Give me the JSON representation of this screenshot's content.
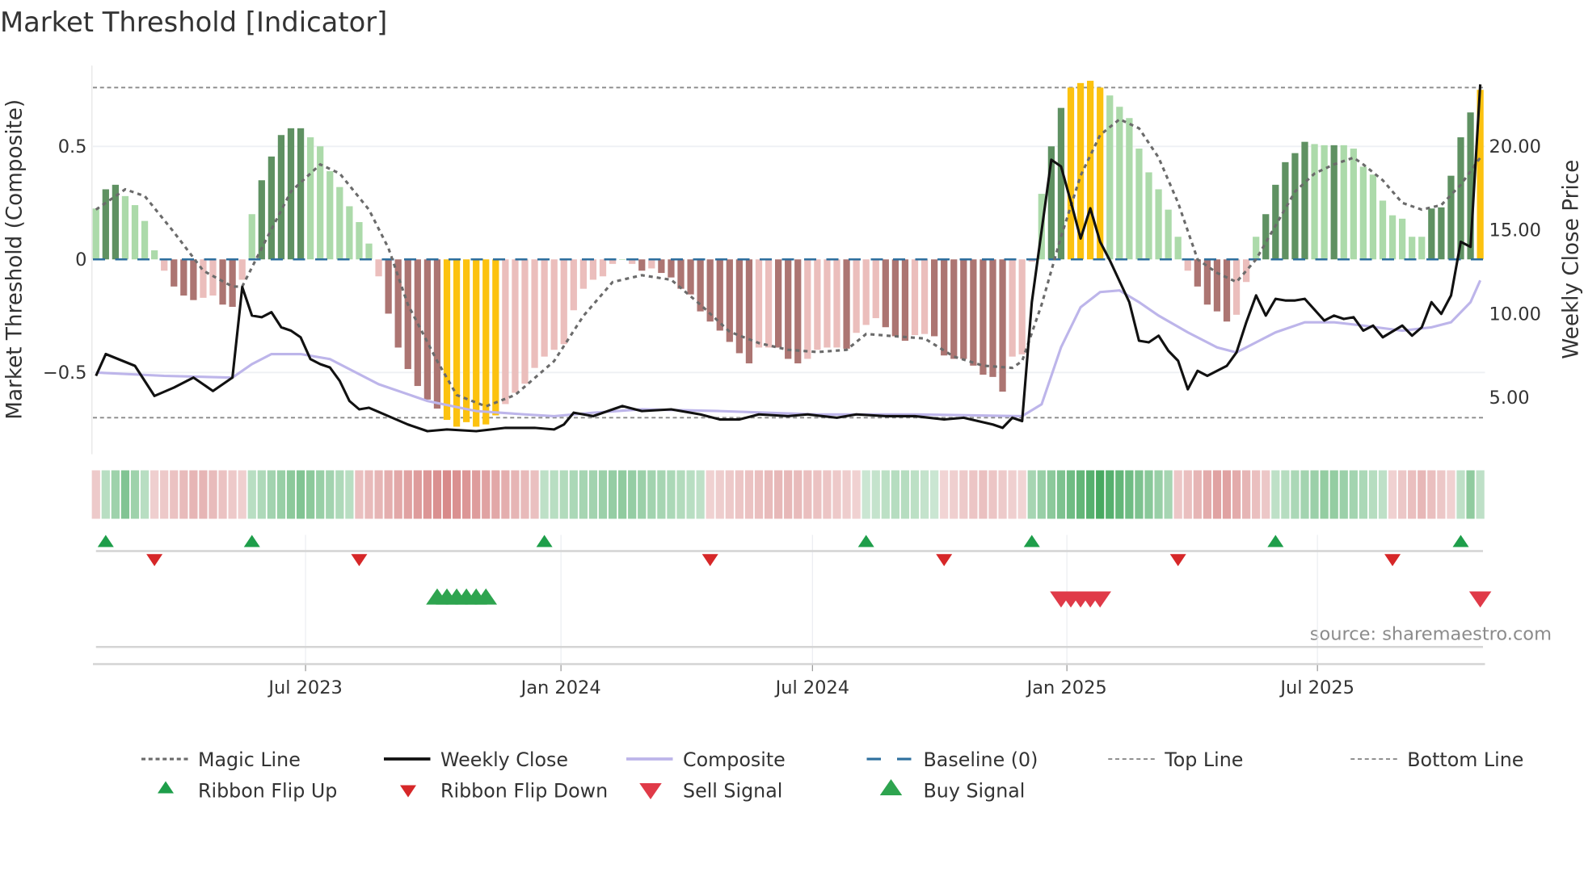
{
  "chart_data": {
    "type": "bar",
    "title": "Market Threshold [Indicator]",
    "ylabel_left": "Market Threshold (Composite)",
    "ylabel_right": "Weekly Close Price",
    "source": "source: sharemaestro.com",
    "left_ticks": [
      {
        "v": 0.5,
        "label": "0.5"
      },
      {
        "v": 0,
        "label": "0"
      },
      {
        "v": -0.5,
        "label": "−0.5"
      }
    ],
    "right_ticks": [
      {
        "v": 20,
        "label": "20.00"
      },
      {
        "v": 15,
        "label": "15.00"
      },
      {
        "v": 10,
        "label": "10.00"
      },
      {
        "v": 5,
        "label": "5.00"
      }
    ],
    "x_ticks": [
      {
        "bar": 22.5,
        "label": "Jul 2023"
      },
      {
        "bar": 48.7,
        "label": "Jan 2024"
      },
      {
        "bar": 74.5,
        "label": "Jul 2024"
      },
      {
        "bar": 100.6,
        "label": "Jan 2025"
      },
      {
        "bar": 126.3,
        "label": "Jul 2025"
      }
    ],
    "top_line": 0.76,
    "bottom_line": -0.7,
    "baseline": 0,
    "composite_bars": [
      0.225,
      0.31,
      0.33,
      0.28,
      0.24,
      0.17,
      0.04,
      -0.05,
      -0.12,
      -0.16,
      -0.18,
      -0.17,
      -0.16,
      -0.2,
      -0.21,
      -0.09,
      0.2,
      0.35,
      0.455,
      0.55,
      0.58,
      0.58,
      0.54,
      0.5,
      0.39,
      0.32,
      0.235,
      0.165,
      0.07,
      -0.075,
      -0.24,
      -0.39,
      -0.485,
      -0.56,
      -0.62,
      -0.66,
      -0.71,
      -0.74,
      -0.72,
      -0.74,
      -0.73,
      -0.69,
      -0.64,
      -0.59,
      -0.55,
      -0.48,
      -0.43,
      -0.4,
      -0.375,
      -0.225,
      -0.13,
      -0.09,
      -0.075,
      -0.02,
      0,
      -0.02,
      -0.05,
      -0.04,
      -0.06,
      -0.08,
      -0.13,
      -0.155,
      -0.23,
      -0.275,
      -0.315,
      -0.365,
      -0.415,
      -0.46,
      -0.39,
      -0.39,
      -0.39,
      -0.44,
      -0.46,
      -0.44,
      -0.4,
      -0.39,
      -0.39,
      -0.395,
      -0.325,
      -0.29,
      -0.26,
      -0.3,
      -0.34,
      -0.36,
      -0.335,
      -0.33,
      -0.34,
      -0.425,
      -0.44,
      -0.44,
      -0.47,
      -0.51,
      -0.52,
      -0.585,
      -0.43,
      -0.42,
      -0.01,
      0.29,
      0.5,
      0.67,
      0.76,
      0.78,
      0.79,
      0.76,
      0.725,
      0.675,
      0.625,
      0.49,
      0.385,
      0.31,
      0.22,
      0.1,
      -0.05,
      -0.12,
      -0.2,
      -0.23,
      -0.275,
      -0.245,
      -0.1,
      0.1,
      0.2,
      0.33,
      0.43,
      0.47,
      0.52,
      0.51,
      0.505,
      0.505,
      0.505,
      0.49,
      0.41,
      0.375,
      0.26,
      0.195,
      0.18,
      0.1,
      0.1,
      0.225,
      0.23,
      0.37,
      0.54,
      0.65,
      0.75
    ],
    "bar_intensity": [
      0,
      1,
      1,
      0,
      0,
      0,
      0,
      0,
      1,
      1,
      1,
      0,
      0,
      1,
      1,
      0,
      0,
      1,
      1,
      1,
      1,
      1,
      0,
      0,
      0,
      0,
      0,
      0,
      0,
      0,
      1,
      1,
      1,
      1,
      1,
      1,
      2,
      2,
      2,
      2,
      2,
      2,
      0,
      0,
      0,
      0,
      0,
      0,
      0,
      0,
      0,
      0,
      0,
      0,
      0,
      0,
      1,
      0,
      1,
      1,
      1,
      1,
      1,
      1,
      1,
      1,
      1,
      1,
      0,
      0,
      1,
      1,
      1,
      0,
      0,
      0,
      0,
      1,
      0,
      0,
      0,
      1,
      1,
      1,
      0,
      0,
      1,
      1,
      1,
      1,
      1,
      1,
      1,
      1,
      0,
      0,
      0,
      0,
      1,
      1,
      2,
      2,
      2,
      2,
      0,
      0,
      0,
      0,
      0,
      0,
      0,
      0,
      0,
      1,
      1,
      1,
      1,
      0,
      0,
      0,
      1,
      1,
      1,
      1,
      1,
      0,
      0,
      1,
      0,
      0,
      0,
      0,
      0,
      0,
      0,
      0,
      0,
      1,
      1,
      1,
      1,
      1,
      2
    ],
    "magic_line": [
      [
        1,
        0.22
      ],
      [
        4,
        0.31
      ],
      [
        6,
        0.28
      ],
      [
        9,
        0.12
      ],
      [
        12,
        -0.05
      ],
      [
        15,
        -0.12
      ],
      [
        16,
        -0.12
      ],
      [
        18,
        0.05
      ],
      [
        21,
        0.3
      ],
      [
        24,
        0.42
      ],
      [
        26,
        0.38
      ],
      [
        29,
        0.22
      ],
      [
        31,
        0.05
      ],
      [
        33,
        -0.2
      ],
      [
        36,
        -0.45
      ],
      [
        38,
        -0.6
      ],
      [
        41,
        -0.65
      ],
      [
        44,
        -0.6
      ],
      [
        48,
        -0.45
      ],
      [
        51,
        -0.25
      ],
      [
        54,
        -0.1
      ],
      [
        57,
        -0.07
      ],
      [
        60,
        -0.09
      ],
      [
        63,
        -0.2
      ],
      [
        66,
        -0.32
      ],
      [
        69,
        -0.37
      ],
      [
        72,
        -0.4
      ],
      [
        75,
        -0.41
      ],
      [
        78,
        -0.4
      ],
      [
        80,
        -0.33
      ],
      [
        83,
        -0.34
      ],
      [
        86,
        -0.35
      ],
      [
        89,
        -0.43
      ],
      [
        92,
        -0.47
      ],
      [
        95,
        -0.48
      ],
      [
        96,
        -0.45
      ],
      [
        98,
        -0.2
      ],
      [
        100,
        0.1
      ],
      [
        102,
        0.37
      ],
      [
        104,
        0.55
      ],
      [
        106,
        0.62
      ],
      [
        108,
        0.58
      ],
      [
        110,
        0.45
      ],
      [
        112,
        0.25
      ],
      [
        114,
        0.0
      ],
      [
        116,
        -0.06
      ],
      [
        118,
        -0.1
      ],
      [
        120,
        0.0
      ],
      [
        122,
        0.15
      ],
      [
        124,
        0.3
      ],
      [
        126,
        0.38
      ],
      [
        128,
        0.42
      ],
      [
        130,
        0.45
      ],
      [
        131,
        0.42
      ],
      [
        133,
        0.35
      ],
      [
        135,
        0.25
      ],
      [
        137,
        0.22
      ],
      [
        139,
        0.24
      ],
      [
        141,
        0.33
      ],
      [
        143,
        0.45
      ]
    ],
    "weekly_close": [
      [
        1,
        6.3
      ],
      [
        2,
        7.6
      ],
      [
        5,
        6.9
      ],
      [
        7,
        5.1
      ],
      [
        9,
        5.6
      ],
      [
        11,
        6.2
      ],
      [
        13,
        5.4
      ],
      [
        15,
        6.2
      ],
      [
        16,
        11.6
      ],
      [
        17,
        9.9
      ],
      [
        18,
        9.8
      ],
      [
        19,
        10.1
      ],
      [
        20,
        9.2
      ],
      [
        21,
        9.0
      ],
      [
        22,
        8.6
      ],
      [
        23,
        7.3
      ],
      [
        24,
        7.0
      ],
      [
        25,
        6.8
      ],
      [
        26,
        6.0
      ],
      [
        27,
        4.8
      ],
      [
        28,
        4.3
      ],
      [
        29,
        4.4
      ],
      [
        31,
        3.9
      ],
      [
        33,
        3.4
      ],
      [
        35,
        3.0
      ],
      [
        37,
        3.1
      ],
      [
        40,
        3.0
      ],
      [
        43,
        3.2
      ],
      [
        46,
        3.2
      ],
      [
        48,
        3.1
      ],
      [
        49,
        3.4
      ],
      [
        50,
        4.1
      ],
      [
        52,
        3.9
      ],
      [
        55,
        4.5
      ],
      [
        57,
        4.2
      ],
      [
        60,
        4.3
      ],
      [
        63,
        4.0
      ],
      [
        65,
        3.7
      ],
      [
        67,
        3.7
      ],
      [
        69,
        4.0
      ],
      [
        72,
        3.9
      ],
      [
        74,
        4.0
      ],
      [
        77,
        3.8
      ],
      [
        79,
        4.0
      ],
      [
        82,
        3.9
      ],
      [
        85,
        3.9
      ],
      [
        88,
        3.7
      ],
      [
        90,
        3.8
      ],
      [
        93,
        3.4
      ],
      [
        94,
        3.2
      ],
      [
        95,
        3.8
      ],
      [
        96,
        3.6
      ],
      [
        97,
        10.7
      ],
      [
        99,
        19.2
      ],
      [
        100,
        18.8
      ],
      [
        101,
        16.7
      ],
      [
        102,
        14.5
      ],
      [
        103,
        16.3
      ],
      [
        104,
        14.3
      ],
      [
        105,
        13.2
      ],
      [
        107,
        10.7
      ],
      [
        108,
        8.4
      ],
      [
        109,
        8.3
      ],
      [
        110,
        8.7
      ],
      [
        111,
        7.8
      ],
      [
        112,
        7.2
      ],
      [
        113,
        5.5
      ],
      [
        114,
        6.6
      ],
      [
        115,
        6.3
      ],
      [
        116,
        6.6
      ],
      [
        117,
        6.9
      ],
      [
        118,
        7.7
      ],
      [
        119,
        9.5
      ],
      [
        120,
        11.1
      ],
      [
        121,
        9.9
      ],
      [
        122,
        10.9
      ],
      [
        123,
        10.8
      ],
      [
        124,
        10.8
      ],
      [
        125,
        10.9
      ],
      [
        127,
        9.6
      ],
      [
        128,
        9.9
      ],
      [
        129,
        9.7
      ],
      [
        130,
        9.8
      ],
      [
        131,
        9.0
      ],
      [
        132,
        9.3
      ],
      [
        133,
        8.6
      ],
      [
        135,
        9.3
      ],
      [
        136,
        8.7
      ],
      [
        137,
        9.2
      ],
      [
        138,
        10.7
      ],
      [
        139,
        10.0
      ],
      [
        140,
        11.1
      ],
      [
        141,
        14.3
      ],
      [
        142,
        14.0
      ],
      [
        143,
        23.7
      ]
    ],
    "composite_line": [
      [
        1,
        6.5
      ],
      [
        8,
        6.3
      ],
      [
        15,
        6.2
      ],
      [
        17,
        7.0
      ],
      [
        19,
        7.6
      ],
      [
        22,
        7.6
      ],
      [
        25,
        7.3
      ],
      [
        30,
        5.8
      ],
      [
        35,
        4.8
      ],
      [
        40,
        4.2
      ],
      [
        45,
        4.0
      ],
      [
        48,
        3.9
      ],
      [
        52,
        4.1
      ],
      [
        57,
        4.3
      ],
      [
        65,
        4.2
      ],
      [
        75,
        4.0
      ],
      [
        85,
        4.0
      ],
      [
        96,
        3.9
      ],
      [
        98,
        4.6
      ],
      [
        100,
        8.0
      ],
      [
        102,
        10.4
      ],
      [
        104,
        11.3
      ],
      [
        106,
        11.4
      ],
      [
        108,
        10.7
      ],
      [
        110,
        9.9
      ],
      [
        113,
        8.9
      ],
      [
        116,
        8.0
      ],
      [
        118,
        7.7
      ],
      [
        120,
        8.3
      ],
      [
        122,
        8.9
      ],
      [
        125,
        9.5
      ],
      [
        128,
        9.5
      ],
      [
        131,
        9.3
      ],
      [
        135,
        9.0
      ],
      [
        138,
        9.2
      ],
      [
        140,
        9.5
      ],
      [
        142,
        10.7
      ],
      [
        143,
        12.0
      ]
    ],
    "ribbon_segments": [
      {
        "start": 1,
        "end": 1,
        "peak": -0.2
      },
      {
        "start": 2,
        "end": 6,
        "peak": 0.6
      },
      {
        "start": 7,
        "end": 16,
        "peak": -0.45
      },
      {
        "start": 17,
        "end": 27,
        "peak": 0.6
      },
      {
        "start": 28,
        "end": 46,
        "peak": -0.85
      },
      {
        "start": 47,
        "end": 63,
        "peak": 0.5
      },
      {
        "start": 64,
        "end": 79,
        "peak": -0.4
      },
      {
        "start": 80,
        "end": 87,
        "peak": 0.25
      },
      {
        "start": 88,
        "end": 96,
        "peak": -0.3
      },
      {
        "start": 97,
        "end": 111,
        "peak": 1.0
      },
      {
        "start": 112,
        "end": 121,
        "peak": -0.65
      },
      {
        "start": 122,
        "end": 133,
        "peak": 0.5
      },
      {
        "start": 134,
        "end": 140,
        "peak": -0.4
      },
      {
        "start": 141,
        "end": 143,
        "peak": 0.5
      }
    ],
    "ribbon_flip_up": [
      2,
      17,
      47,
      80,
      97,
      122,
      141
    ],
    "ribbon_flip_down": [
      7,
      28,
      64,
      88,
      112,
      134
    ],
    "buy_signals": [
      36,
      37,
      38,
      39,
      40,
      41
    ],
    "sell_signals": [
      100,
      101,
      102,
      103,
      104,
      143
    ],
    "colors": {
      "dark_green": "#5f9162",
      "light_green": "#acdaaa",
      "dark_red": "#ac7572",
      "light_red": "#ebbebc",
      "gold": "#fcc20f",
      "weekly_close": "#111111",
      "composite": "#bdb5ea",
      "magic": "#6b6b6b",
      "baseline": "#2e6f9e",
      "threshold": "#8a8a8a",
      "flip_up": "#1e9e4a",
      "flip_down": "#d62728",
      "buy": "#2ea44f",
      "sell": "#e03a48"
    }
  },
  "legend": [
    {
      "label": "Magic Line",
      "key": "magic"
    },
    {
      "label": "Weekly Close",
      "key": "close"
    },
    {
      "label": "Composite",
      "key": "composite"
    },
    {
      "label": "Baseline (0)",
      "key": "baseline"
    },
    {
      "label": "Top Line",
      "key": "top"
    },
    {
      "label": "Bottom Line",
      "key": "bottom"
    },
    {
      "label": "Ribbon Flip Up",
      "key": "flipup"
    },
    {
      "label": "Ribbon Flip Down",
      "key": "flipdown"
    },
    {
      "label": "Sell Signal",
      "key": "sell"
    },
    {
      "label": "Buy Signal",
      "key": "buy"
    }
  ]
}
